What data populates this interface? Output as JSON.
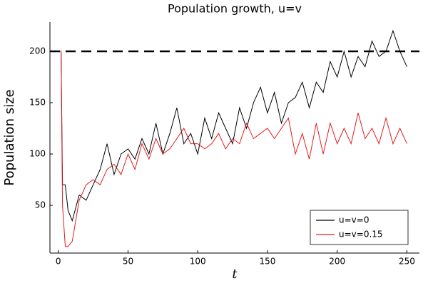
{
  "chart_data": {
    "type": "line",
    "title": "Population growth, u=v",
    "x_label": "t",
    "y_label": "Population size",
    "x": [
      1,
      2,
      3,
      5,
      7,
      10,
      15,
      20,
      25,
      30,
      35,
      40,
      45,
      50,
      55,
      60,
      65,
      70,
      75,
      80,
      85,
      90,
      95,
      100,
      105,
      110,
      115,
      120,
      125,
      130,
      135,
      140,
      145,
      150,
      155,
      160,
      165,
      170,
      175,
      180,
      185,
      190,
      195,
      200,
      205,
      210,
      215,
      220,
      225,
      230,
      235,
      240,
      245,
      250
    ],
    "series": [
      {
        "name": "u=v=0",
        "color": "#000000",
        "values": [
          200,
          200,
          70,
          70,
          45,
          35,
          60,
          55,
          70,
          85,
          110,
          80,
          100,
          105,
          95,
          115,
          100,
          130,
          100,
          120,
          145,
          110,
          120,
          100,
          135,
          115,
          140,
          125,
          110,
          145,
          125,
          150,
          165,
          140,
          160,
          130,
          150,
          155,
          170,
          145,
          170,
          160,
          190,
          175,
          200,
          175,
          195,
          185,
          210,
          195,
          200,
          220,
          200,
          185
        ]
      },
      {
        "name": "u=v=0.15",
        "color": "#e41a1c",
        "values": [
          200,
          200,
          50,
          10,
          10,
          15,
          55,
          70,
          75,
          70,
          85,
          90,
          80,
          100,
          85,
          110,
          95,
          115,
          100,
          105,
          115,
          125,
          110,
          110,
          105,
          110,
          120,
          105,
          115,
          110,
          130,
          115,
          120,
          125,
          115,
          125,
          135,
          100,
          120,
          95,
          130,
          100,
          130,
          110,
          125,
          110,
          140,
          115,
          125,
          110,
          135,
          110,
          125,
          110
        ]
      }
    ],
    "reference_line": 200,
    "xlim": [
      -6,
      259
    ],
    "ylim": [
      3.5,
      228.5
    ],
    "xticks": [
      0,
      50,
      100,
      150,
      200,
      250
    ],
    "yticks": [
      50,
      100,
      150,
      200
    ],
    "grid": false,
    "legend": "bottom-right"
  }
}
